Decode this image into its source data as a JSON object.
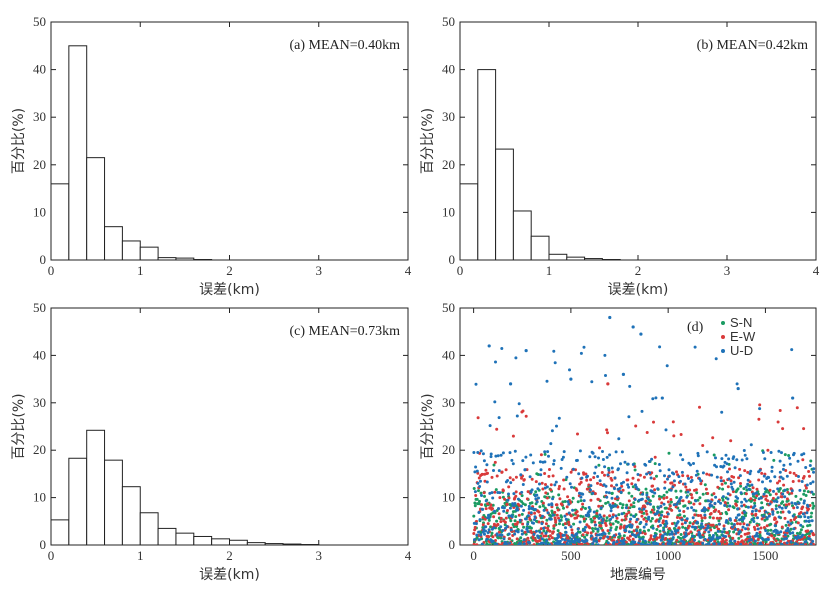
{
  "chart_data": [
    {
      "type": "bar",
      "panel": "a",
      "annotation": "(a) MEAN=0.40km",
      "bin_width": 0.2,
      "bin_starts": [
        0,
        0.2,
        0.4,
        0.6,
        0.8,
        1.0,
        1.2,
        1.4,
        1.6,
        1.8
      ],
      "values": [
        16,
        45,
        21.5,
        7,
        4,
        2.7,
        0.5,
        0.4,
        0.1,
        0
      ],
      "xlabel": "误差(km)",
      "ylabel": "百分比(%)",
      "xlim": [
        0,
        4
      ],
      "ylim": [
        0,
        50
      ],
      "xticks": [
        0,
        1,
        2,
        3,
        4
      ],
      "yticks": [
        0,
        10,
        20,
        30,
        40,
        50
      ]
    },
    {
      "type": "bar",
      "panel": "b",
      "annotation": "(b) MEAN=0.42km",
      "bin_width": 0.2,
      "bin_starts": [
        0,
        0.2,
        0.4,
        0.6,
        0.8,
        1.0,
        1.2,
        1.4,
        1.6,
        1.8
      ],
      "values": [
        16,
        40,
        23.3,
        10.3,
        5,
        1.2,
        0.6,
        0.3,
        0.1,
        0
      ],
      "xlabel": "误差(km)",
      "ylabel": "百分比(%)",
      "xlim": [
        0,
        4
      ],
      "ylim": [
        0,
        50
      ],
      "xticks": [
        0,
        1,
        2,
        3,
        4
      ],
      "yticks": [
        0,
        10,
        20,
        30,
        40,
        50
      ]
    },
    {
      "type": "bar",
      "panel": "c",
      "annotation": "(c) MEAN=0.73km",
      "bin_width": 0.2,
      "bin_starts": [
        0,
        0.2,
        0.4,
        0.6,
        0.8,
        1.0,
        1.2,
        1.4,
        1.6,
        1.8,
        2.0,
        2.2,
        2.4,
        2.6,
        2.8
      ],
      "values": [
        5.3,
        18.3,
        24.2,
        17.9,
        12.3,
        6.8,
        3.5,
        2.5,
        1.8,
        1.3,
        1.0,
        0.5,
        0.3,
        0.2,
        0.1
      ],
      "xlabel": "误差(km)",
      "ylabel": "百分比(%)",
      "xlim": [
        0,
        4
      ],
      "ylim": [
        0,
        50
      ],
      "xticks": [
        0,
        1,
        2,
        3,
        4
      ],
      "yticks": [
        0,
        10,
        20,
        30,
        40,
        50
      ]
    },
    {
      "type": "scatter",
      "panel": "d",
      "annotation": "(d)",
      "xlabel": "地震编号",
      "ylabel": "百分比(%)",
      "xlim": [
        -70,
        1760
      ],
      "ylim": [
        0,
        50
      ],
      "xticks": [
        0,
        500,
        1000,
        1500
      ],
      "yticks": [
        0,
        10,
        20,
        30,
        40,
        50
      ],
      "n_points_per_series": 1750,
      "series": [
        {
          "name": "S-N",
          "color": "#1a9b62",
          "typical_range": [
            0,
            12
          ],
          "max": 22
        },
        {
          "name": "E-W",
          "color": "#d93a3a",
          "typical_range": [
            0,
            16
          ],
          "max": 34
        },
        {
          "name": "U-D",
          "color": "#1f72b8",
          "typical_range": [
            0,
            20
          ],
          "max": 48
        }
      ],
      "notable_points": [
        {
          "series": "U-D",
          "x": 700,
          "y": 48
        },
        {
          "series": "U-D",
          "x": 820,
          "y": 46
        },
        {
          "series": "U-D",
          "x": 860,
          "y": 44.5
        },
        {
          "series": "U-D",
          "x": 270,
          "y": 41
        },
        {
          "series": "U-D",
          "x": 80,
          "y": 42
        },
        {
          "series": "U-D",
          "x": 770,
          "y": 36
        },
        {
          "series": "U-D",
          "x": 500,
          "y": 35
        },
        {
          "series": "U-D",
          "x": 190,
          "y": 34
        },
        {
          "series": "U-D",
          "x": 1360,
          "y": 33
        },
        {
          "series": "E-W",
          "x": 690,
          "y": 34
        },
        {
          "series": "U-D",
          "x": 1640,
          "y": 31
        },
        {
          "series": "U-D",
          "x": 970,
          "y": 31
        }
      ]
    }
  ]
}
